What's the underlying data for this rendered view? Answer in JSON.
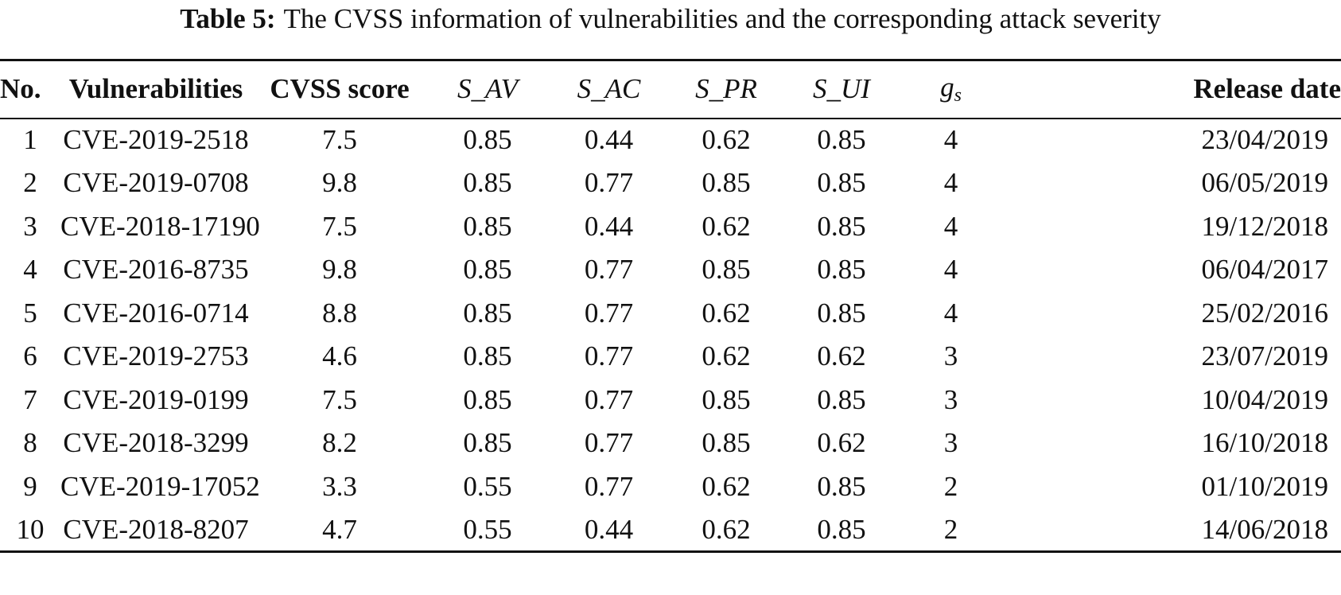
{
  "caption": {
    "label": "Table 5:",
    "text": "The CVSS information of vulnerabilities and the corresponding attack severity"
  },
  "headers": {
    "no": "No.",
    "vulnerabilities": "Vulnerabilities",
    "cvss_score": "CVSS score",
    "s_av": "S_AV",
    "s_ac": "S_AC",
    "s_pr": "S_PR",
    "s_ui": "S_UI",
    "gs_base": "g",
    "gs_sub": "s",
    "release_date": "Release date"
  },
  "rows": [
    {
      "no": "1",
      "cve": "CVE-2019-2518",
      "cvss": "7.5",
      "s_av": "0.85",
      "s_ac": "0.44",
      "s_pr": "0.62",
      "s_ui": "0.85",
      "gs": "4",
      "date": "23/04/2019"
    },
    {
      "no": "2",
      "cve": "CVE-2019-0708",
      "cvss": "9.8",
      "s_av": "0.85",
      "s_ac": "0.77",
      "s_pr": "0.85",
      "s_ui": "0.85",
      "gs": "4",
      "date": "06/05/2019"
    },
    {
      "no": "3",
      "cve": "CVE-2018-17190",
      "cvss": "7.5",
      "s_av": "0.85",
      "s_ac": "0.44",
      "s_pr": "0.62",
      "s_ui": "0.85",
      "gs": "4",
      "date": "19/12/2018"
    },
    {
      "no": "4",
      "cve": "CVE-2016-8735",
      "cvss": "9.8",
      "s_av": "0.85",
      "s_ac": "0.77",
      "s_pr": "0.85",
      "s_ui": "0.85",
      "gs": "4",
      "date": "06/04/2017"
    },
    {
      "no": "5",
      "cve": "CVE-2016-0714",
      "cvss": "8.8",
      "s_av": "0.85",
      "s_ac": "0.77",
      "s_pr": "0.62",
      "s_ui": "0.85",
      "gs": "4",
      "date": "25/02/2016"
    },
    {
      "no": "6",
      "cve": "CVE-2019-2753",
      "cvss": "4.6",
      "s_av": "0.85",
      "s_ac": "0.77",
      "s_pr": "0.62",
      "s_ui": "0.62",
      "gs": "3",
      "date": "23/07/2019"
    },
    {
      "no": "7",
      "cve": "CVE-2019-0199",
      "cvss": "7.5",
      "s_av": "0.85",
      "s_ac": "0.77",
      "s_pr": "0.85",
      "s_ui": "0.85",
      "gs": "3",
      "date": "10/04/2019"
    },
    {
      "no": "8",
      "cve": "CVE-2018-3299",
      "cvss": "8.2",
      "s_av": "0.85",
      "s_ac": "0.77",
      "s_pr": "0.85",
      "s_ui": "0.62",
      "gs": "3",
      "date": "16/10/2018"
    },
    {
      "no": "9",
      "cve": "CVE-2019-17052",
      "cvss": "3.3",
      "s_av": "0.55",
      "s_ac": "0.77",
      "s_pr": "0.62",
      "s_ui": "0.85",
      "gs": "2",
      "date": "01/10/2019"
    },
    {
      "no": "10",
      "cve": "CVE-2018-8207",
      "cvss": "4.7",
      "s_av": "0.55",
      "s_ac": "0.44",
      "s_pr": "0.62",
      "s_ui": "0.85",
      "gs": "2",
      "date": "14/06/2018"
    }
  ]
}
